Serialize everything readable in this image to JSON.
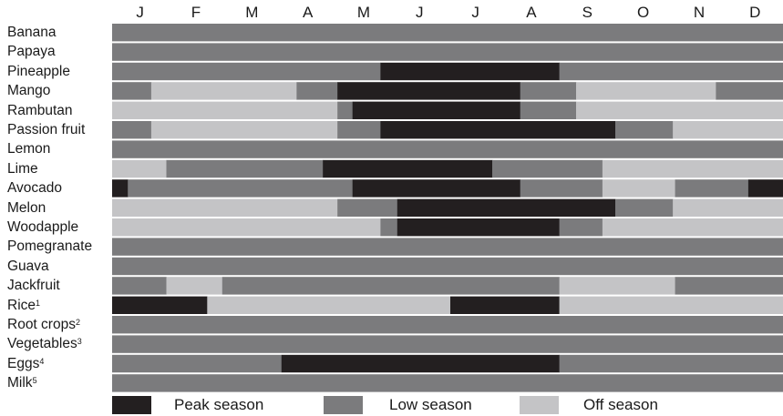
{
  "chart_data": {
    "type": "heatmap",
    "months": [
      "J",
      "F",
      "M",
      "A",
      "M",
      "J",
      "J",
      "A",
      "S",
      "O",
      "N",
      "D"
    ],
    "colors": {
      "peak": "#231f20",
      "low": "#7b7b7d",
      "off": "#c4c4c6"
    },
    "legend": [
      {
        "key": "peak",
        "label": "Peak season"
      },
      {
        "key": "low",
        "label": "Low season"
      },
      {
        "key": "off",
        "label": "Off season"
      }
    ],
    "rows": [
      {
        "name": "Banana",
        "sup": "",
        "segments": [
          [
            0,
            12,
            "low"
          ]
        ]
      },
      {
        "name": "Papaya",
        "sup": "",
        "segments": [
          [
            0,
            12,
            "low"
          ]
        ]
      },
      {
        "name": "Pineapple",
        "sup": "",
        "segments": [
          [
            0,
            4.8,
            "low"
          ],
          [
            4.8,
            8,
            "peak"
          ],
          [
            8,
            12,
            "low"
          ]
        ]
      },
      {
        "name": "Mango",
        "sup": "",
        "segments": [
          [
            0,
            0.7,
            "low"
          ],
          [
            0.7,
            3.3,
            "off"
          ],
          [
            3.3,
            4.03,
            "low"
          ],
          [
            4.03,
            7.3,
            "peak"
          ],
          [
            7.3,
            8.3,
            "low"
          ],
          [
            8.3,
            10.8,
            "off"
          ],
          [
            10.8,
            12,
            "low"
          ]
        ]
      },
      {
        "name": "Rambutan",
        "sup": "",
        "segments": [
          [
            0,
            4.03,
            "off"
          ],
          [
            4.03,
            4.3,
            "low"
          ],
          [
            4.3,
            7.3,
            "peak"
          ],
          [
            7.3,
            8.3,
            "low"
          ],
          [
            8.3,
            12,
            "off"
          ]
        ]
      },
      {
        "name": "Passion fruit",
        "sup": "",
        "segments": [
          [
            0,
            0.7,
            "low"
          ],
          [
            0.7,
            4.03,
            "off"
          ],
          [
            4.03,
            4.8,
            "low"
          ],
          [
            4.8,
            9,
            "peak"
          ],
          [
            9,
            10.03,
            "low"
          ],
          [
            10.03,
            12,
            "off"
          ]
        ]
      },
      {
        "name": "Lemon",
        "sup": "",
        "segments": [
          [
            0,
            12,
            "low"
          ]
        ]
      },
      {
        "name": "Lime",
        "sup": "",
        "segments": [
          [
            0,
            0.97,
            "off"
          ],
          [
            0.97,
            3.77,
            "low"
          ],
          [
            3.77,
            6.8,
            "peak"
          ],
          [
            6.8,
            8.77,
            "low"
          ],
          [
            8.77,
            12,
            "off"
          ]
        ]
      },
      {
        "name": "Avocado",
        "sup": "",
        "segments": [
          [
            0,
            0.28,
            "peak"
          ],
          [
            0.28,
            4.3,
            "low"
          ],
          [
            4.3,
            7.3,
            "peak"
          ],
          [
            7.3,
            8.77,
            "low"
          ],
          [
            8.77,
            10.07,
            "off"
          ],
          [
            10.07,
            11.38,
            "low"
          ],
          [
            11.38,
            12,
            "peak"
          ]
        ]
      },
      {
        "name": "Melon",
        "sup": "",
        "segments": [
          [
            0,
            4.03,
            "off"
          ],
          [
            4.03,
            5.1,
            "low"
          ],
          [
            5.1,
            9,
            "peak"
          ],
          [
            9,
            10.03,
            "low"
          ],
          [
            10.03,
            12,
            "off"
          ]
        ]
      },
      {
        "name": "Woodapple",
        "sup": "",
        "segments": [
          [
            0,
            4.8,
            "off"
          ],
          [
            4.8,
            5.1,
            "low"
          ],
          [
            5.1,
            8,
            "peak"
          ],
          [
            8,
            8.77,
            "low"
          ],
          [
            8.77,
            12,
            "off"
          ]
        ]
      },
      {
        "name": "Pomegranate",
        "sup": "",
        "segments": [
          [
            0,
            12,
            "low"
          ]
        ]
      },
      {
        "name": "Guava",
        "sup": "",
        "segments": [
          [
            0,
            12,
            "low"
          ]
        ]
      },
      {
        "name": "Jackfruit",
        "sup": "",
        "segments": [
          [
            0,
            0.97,
            "low"
          ],
          [
            0.97,
            1.97,
            "off"
          ],
          [
            1.97,
            8,
            "low"
          ],
          [
            8,
            10.07,
            "off"
          ],
          [
            10.07,
            12,
            "low"
          ]
        ]
      },
      {
        "name": "Rice",
        "sup": "1",
        "segments": [
          [
            0,
            1.7,
            "peak"
          ],
          [
            1.7,
            6.05,
            "off"
          ],
          [
            6.05,
            8,
            "peak"
          ],
          [
            8,
            12,
            "off"
          ]
        ]
      },
      {
        "name": "Root crops",
        "sup": "2",
        "segments": [
          [
            0,
            12,
            "low"
          ]
        ]
      },
      {
        "name": "Vegetables",
        "sup": "3",
        "segments": [
          [
            0,
            12,
            "low"
          ]
        ]
      },
      {
        "name": "Eggs",
        "sup": "4",
        "segments": [
          [
            0,
            3.03,
            "low"
          ],
          [
            3.03,
            8,
            "peak"
          ],
          [
            8,
            12,
            "low"
          ]
        ]
      },
      {
        "name": "Milk",
        "sup": "5",
        "segments": [
          [
            0,
            12,
            "low"
          ]
        ]
      }
    ]
  }
}
